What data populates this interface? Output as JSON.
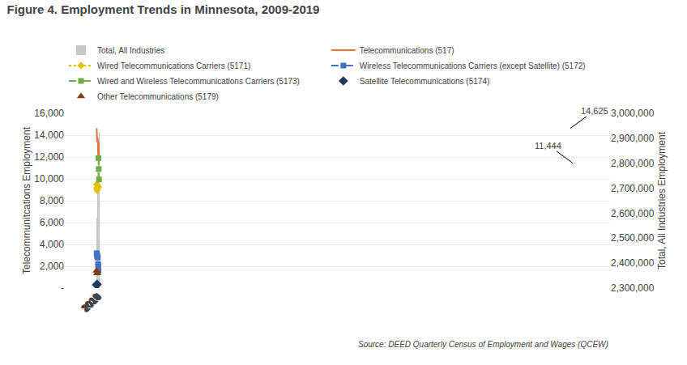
{
  "chart_data": {
    "type": "bar_line",
    "title": "Figure 4. Employment Trends in Minnesota, 2009-2019",
    "source": "Source: DEED Quarterly Census of Employment and Wages (QCEW)",
    "categories": [
      "2009",
      "2010",
      "2011",
      "2012",
      "2013",
      "2014",
      "2015",
      "2016",
      "2017",
      "2018",
      "2019"
    ],
    "series": [
      {
        "name": "Total, All Industries",
        "type": "bar",
        "axis": "y2",
        "color": "#c8c8c8",
        "values": [
          2560000,
          2530000,
          2580000,
          2630000,
          2680000,
          2730000,
          2780000,
          2830000,
          2855000,
          2895000,
          2925000
        ]
      },
      {
        "name": "Telecommunications (517)",
        "type": "line",
        "color": "#E8743B",
        "line_style": "solid",
        "marker": "none",
        "values": [
          14625,
          13600,
          13350,
          13800,
          13700,
          13650,
          12400,
          12050,
          13300,
          13350,
          11444
        ]
      },
      {
        "name": "Wired Telecommunications Carriers (5171)",
        "type": "line",
        "color": "#E8C000",
        "line_style": "dot",
        "marker": "diamond",
        "values": [
          9500,
          9100,
          8950,
          9250,
          9200,
          9200,
          9250,
          9300,
          null,
          null,
          null
        ]
      },
      {
        "name": "Wireless Telecommunications Carriers (except Satellite) (5172)",
        "type": "line",
        "color": "#4472C4",
        "line_style": "dashdot",
        "marker": "square",
        "values": [
          3200,
          3100,
          3000,
          2900,
          2850,
          2800,
          2200,
          2050,
          1600,
          null,
          null
        ]
      },
      {
        "name": "Wired and Wireless Telecommunications Carriers (5173)",
        "type": "line",
        "color": "#70AD47",
        "line_style": "dash",
        "marker": "square",
        "values": [
          null,
          null,
          null,
          null,
          null,
          null,
          null,
          null,
          11900,
          10900,
          9950
        ]
      },
      {
        "name": "Satellite Telecommunications (5174)",
        "type": "scatter",
        "color": "#203864",
        "marker": "diamond",
        "values": [
          300,
          null,
          350,
          null,
          null,
          null,
          null,
          null,
          null,
          null,
          null
        ]
      },
      {
        "name": "Other Telecommunications (5179)",
        "type": "scatter",
        "color": "#843C0C",
        "marker": "triangle-up",
        "values": [
          1600,
          null,
          1350,
          null,
          null,
          null,
          null,
          null,
          null,
          null,
          null
        ]
      }
    ],
    "ylabel": "Telecommunitcations Employment",
    "y2label": "Total, All Industries Employment",
    "ylim": [
      0,
      16000
    ],
    "yticks": [
      {
        "value": 0,
        "label": "-"
      },
      {
        "value": 2000,
        "label": "2,000"
      },
      {
        "value": 4000,
        "label": "4,000"
      },
      {
        "value": 6000,
        "label": "6,000"
      },
      {
        "value": 8000,
        "label": "8,000"
      },
      {
        "value": 10000,
        "label": "10,000"
      },
      {
        "value": 12000,
        "label": "12,000"
      },
      {
        "value": 14000,
        "label": "14,000"
      },
      {
        "value": 16000,
        "label": "16,000"
      }
    ],
    "y2lim": [
      2300000,
      3000000
    ],
    "y2ticks": [
      {
        "value": 2300000,
        "label": "2,300,000"
      },
      {
        "value": 2400000,
        "label": "2,400,000"
      },
      {
        "value": 2500000,
        "label": "2,500,000"
      },
      {
        "value": 2600000,
        "label": "2,600,000"
      },
      {
        "value": 2700000,
        "label": "2,700,000"
      },
      {
        "value": 2800000,
        "label": "2,800,000"
      },
      {
        "value": 2900000,
        "label": "2,900,000"
      },
      {
        "value": 3000000,
        "label": "3,000,000"
      }
    ],
    "grid": true,
    "legend": "top",
    "annotations": [
      {
        "text": "14,625",
        "x": "2009",
        "y": 14625
      },
      {
        "text": "11,444",
        "x": "2019",
        "y": 11444
      }
    ]
  }
}
